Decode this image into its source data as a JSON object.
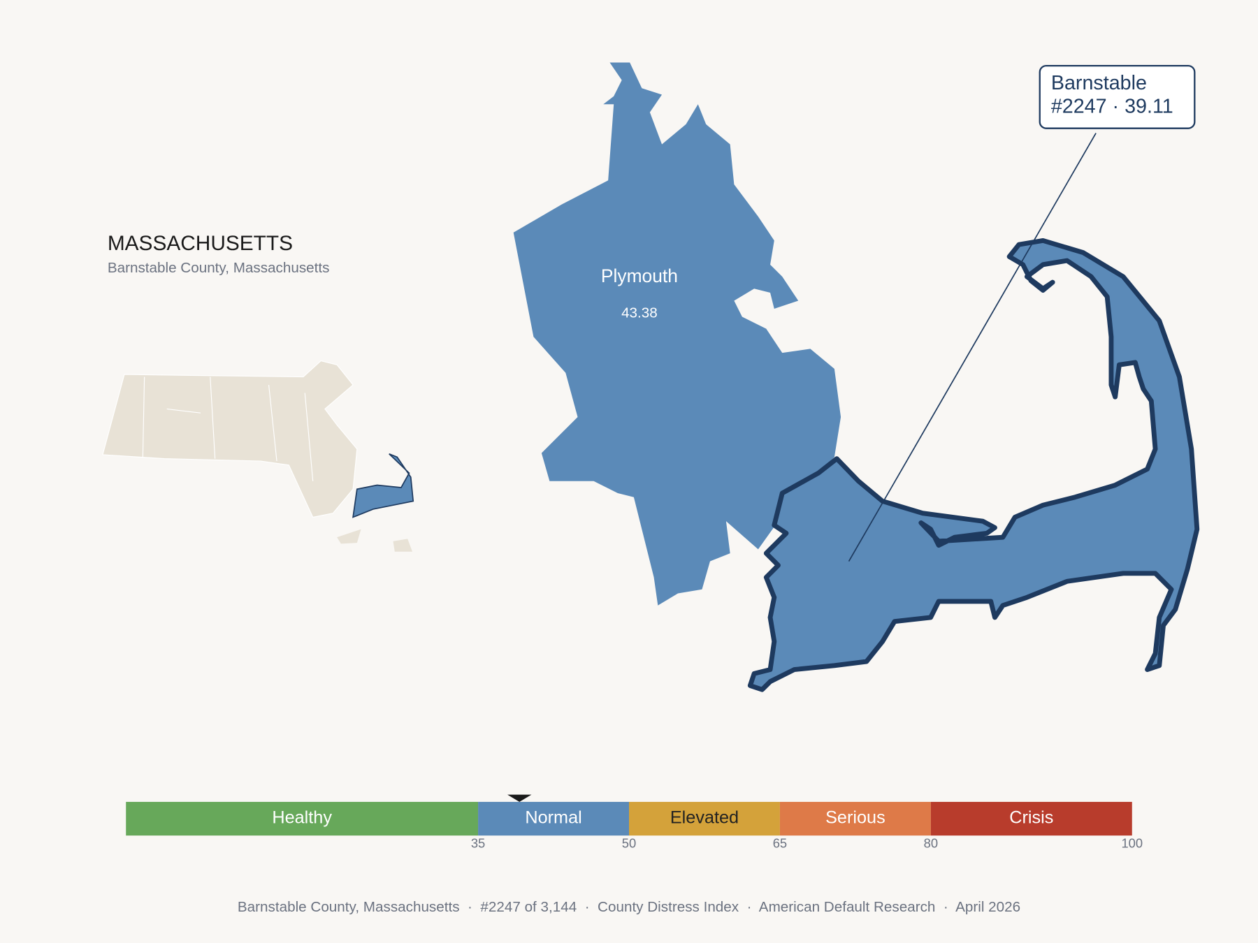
{
  "header": {
    "title": "MASSACHUSETTS",
    "subtitle": "Barnstable County, Massachusetts"
  },
  "map": {
    "county": {
      "name": "Plymouth",
      "score": "43.38"
    },
    "callout": {
      "name": "Barnstable",
      "detail": "#2247 · 39.11"
    }
  },
  "scale": {
    "range": [
      0,
      100
    ],
    "bands": [
      {
        "label": "Healthy",
        "from": 0,
        "to": 35,
        "color": "#67a85a",
        "text_color": "#ffffff"
      },
      {
        "label": "Normal",
        "from": 35,
        "to": 50,
        "color": "#5b8ab8",
        "text_color": "#ffffff"
      },
      {
        "label": "Elevated",
        "from": 50,
        "to": 65,
        "color": "#d4a23a",
        "text_color": "#222222"
      },
      {
        "label": "Serious",
        "from": 65,
        "to": 80,
        "color": "#de7a48",
        "text_color": "#ffffff"
      },
      {
        "label": "Crisis",
        "from": 80,
        "to": 100,
        "color": "#b83c2c",
        "text_color": "#ffffff"
      }
    ],
    "ticks": [
      35,
      50,
      65,
      80,
      100
    ],
    "marker": 39.11
  },
  "footer": "Barnstable County, Massachusetts  ·  #2247 of 3,144  ·  County Distress Index  ·  American Default Research  ·  April 2026"
}
